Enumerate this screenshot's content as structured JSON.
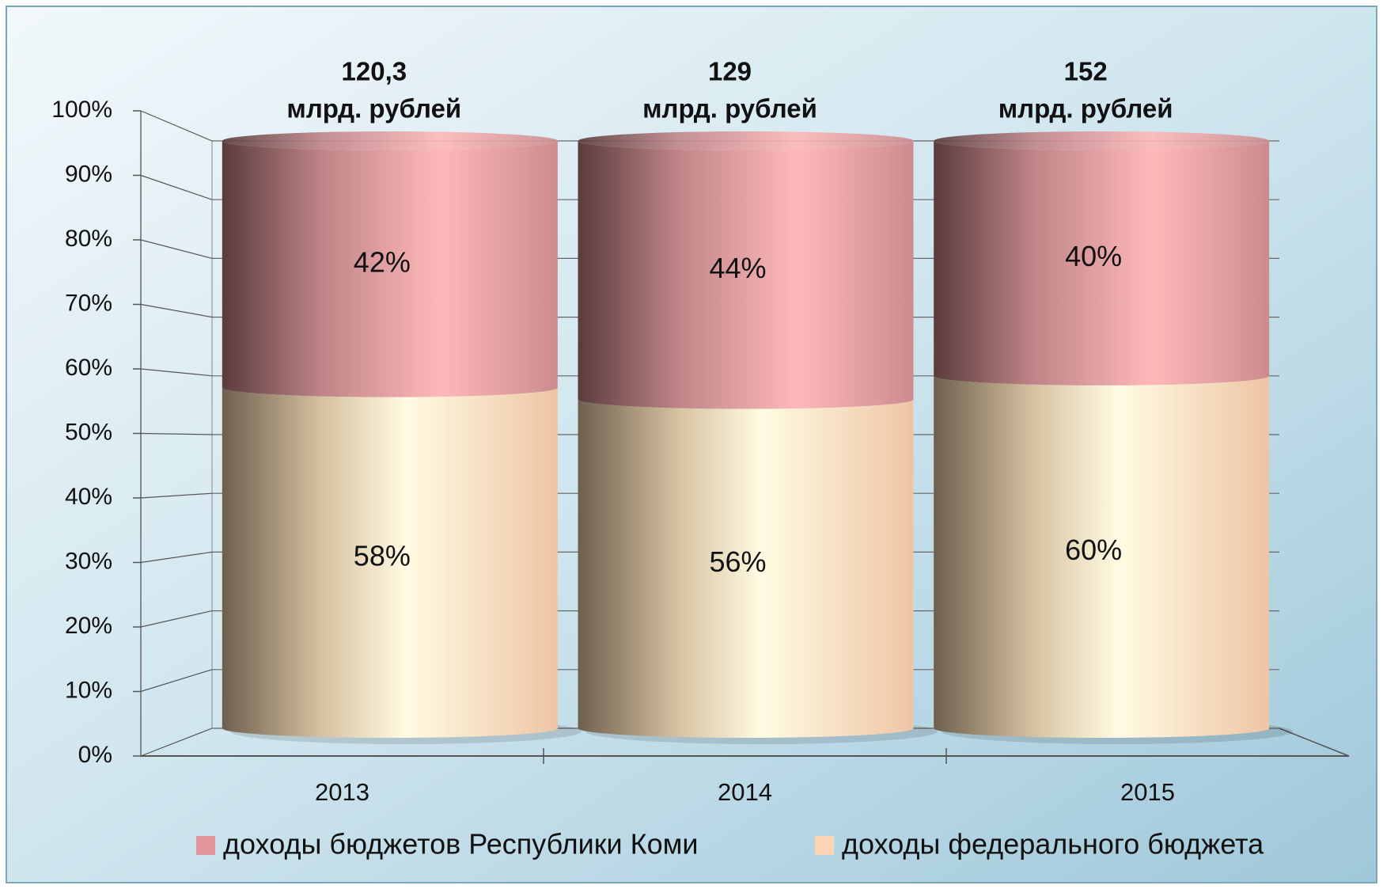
{
  "chart_data": {
    "type": "stacked_cylinder",
    "categories": [
      "2013",
      "2014",
      "2015"
    ],
    "series": [
      {
        "name": "доходы федерального бюджета",
        "color": "#fcd5b4",
        "values": [
          58,
          56,
          60
        ],
        "value_labels": [
          "58%",
          "56%",
          "60%"
        ]
      },
      {
        "name": "доходы бюджетов Республики Коми",
        "color": "#e0959a",
        "values": [
          42,
          44,
          40
        ],
        "value_labels": [
          "42%",
          "44%",
          "40%"
        ]
      }
    ],
    "annotations": [
      {
        "text": "120,3",
        "sub": "млрд. рублей"
      },
      {
        "text": "129",
        "sub": "млрд. рублей"
      },
      {
        "text": "152",
        "sub": "млрд. рублей"
      }
    ],
    "ylim": [
      0,
      100
    ],
    "yticks": [
      {
        "value": 0,
        "label": "0%"
      },
      {
        "value": 10,
        "label": "10%"
      },
      {
        "value": 20,
        "label": "20%"
      },
      {
        "value": 30,
        "label": "30%"
      },
      {
        "value": 40,
        "label": "40%"
      },
      {
        "value": 50,
        "label": "50%"
      },
      {
        "value": 60,
        "label": "60%"
      },
      {
        "value": 70,
        "label": "70%"
      },
      {
        "value": 80,
        "label": "80%"
      },
      {
        "value": 90,
        "label": "90%"
      },
      {
        "value": 100,
        "label": "100%"
      }
    ],
    "grid": true,
    "legend": "bottom"
  }
}
